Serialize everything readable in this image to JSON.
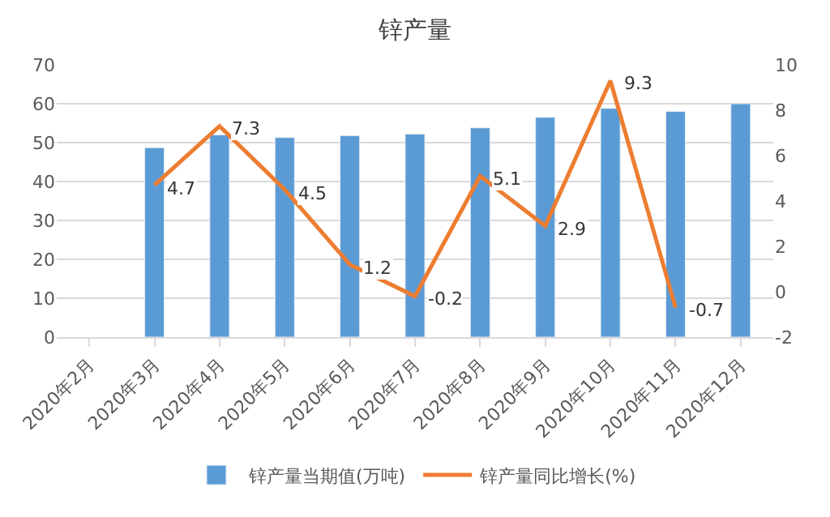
{
  "chart_data": {
    "type": "bar",
    "title": "锌产量",
    "categories": [
      "2020年2月",
      "2020年3月",
      "2020年4月",
      "2020年5月",
      "2020年6月",
      "2020年7月",
      "2020年8月",
      "2020年9月",
      "2020年10月",
      "2020年11月",
      "2020年12月"
    ],
    "series": [
      {
        "name": "锌产量当期值(万吨)",
        "color": "#5b9bd5",
        "values": [
          null,
          48.7,
          52.0,
          51.3,
          51.8,
          52.2,
          53.8,
          56.5,
          58.8,
          58.0,
          60.0
        ]
      },
      {
        "name": "锌产量同比增长(%)",
        "type": "line",
        "axis": "y2",
        "color": "#ed7d31",
        "values": [
          null,
          4.7,
          7.3,
          4.5,
          1.2,
          -0.2,
          5.1,
          2.9,
          9.3,
          -0.7,
          null
        ],
        "data_labels": true
      }
    ],
    "ylim": [
      0,
      70
    ],
    "yticks": [
      0,
      10,
      20,
      30,
      40,
      50,
      60,
      70
    ],
    "y2lim": [
      -2,
      10
    ],
    "y2ticks": [
      -2,
      0,
      2,
      4,
      6,
      8,
      10
    ],
    "grid": "y",
    "legend": "bottom",
    "marker": "none",
    "line_style": "solid"
  }
}
